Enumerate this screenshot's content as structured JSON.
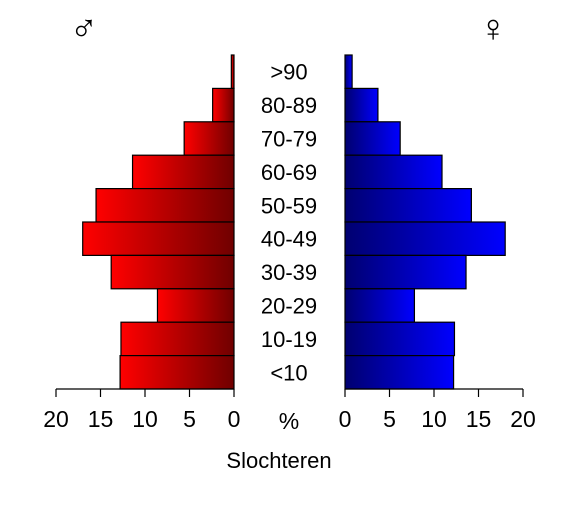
{
  "chart_data": {
    "type": "bar",
    "subtype": "population-pyramid",
    "title": "Slochteren",
    "categories": [
      ">90",
      "80-89",
      "70-79",
      "60-69",
      "50-59",
      "40-49",
      "30-39",
      "20-29",
      "10-19",
      "<10"
    ],
    "series": [
      {
        "name": "♂",
        "side": "left",
        "values": [
          0.3,
          2.4,
          5.6,
          11.4,
          15.5,
          17.0,
          13.8,
          8.6,
          12.7,
          12.8
        ]
      },
      {
        "name": "♀",
        "side": "right",
        "values": [
          0.8,
          3.7,
          6.2,
          10.9,
          14.2,
          18.0,
          13.6,
          7.8,
          12.3,
          12.2
        ]
      }
    ],
    "xlabel": "%",
    "xlim": [
      0,
      20
    ],
    "xticks": [
      "20",
      "15",
      "10",
      "5",
      "0",
      "0",
      "5",
      "10",
      "15",
      "20"
    ],
    "grid": false,
    "colors": {
      "left_fill_light": "#ff0000",
      "left_fill_dark": "#700000",
      "right_fill_light": "#0000ff",
      "right_fill_dark": "#000070",
      "outline": "#000000"
    }
  }
}
